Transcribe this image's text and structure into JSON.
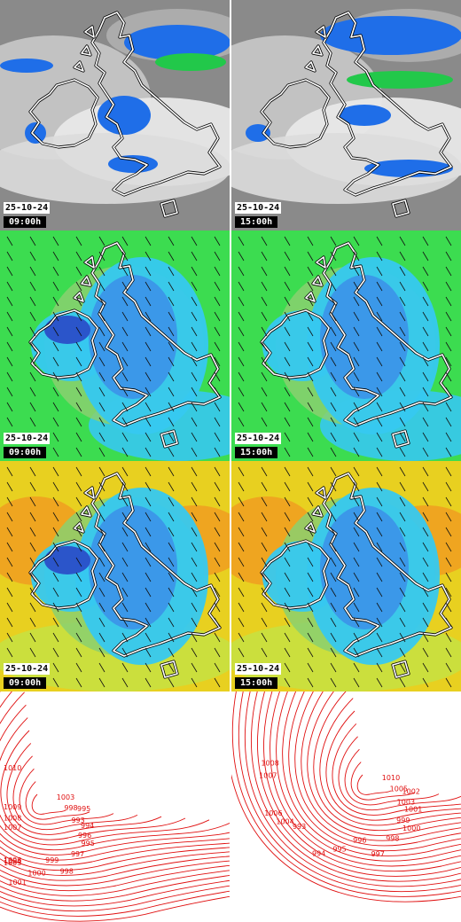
{
  "panels": [
    {
      "row": 0,
      "col": 0,
      "kind": "precipitation",
      "date": "25-10-24",
      "time": "09:00h"
    },
    {
      "row": 0,
      "col": 1,
      "kind": "precipitation",
      "date": "25-10-24",
      "time": "15:00h"
    },
    {
      "row": 1,
      "col": 0,
      "kind": "wind-field",
      "date": "25-10-24",
      "time": "09:00h"
    },
    {
      "row": 1,
      "col": 1,
      "kind": "wind-field",
      "date": "25-10-24",
      "time": "15:00h"
    },
    {
      "row": 2,
      "col": 0,
      "kind": "wind-gust",
      "date": "25-10-24",
      "time": "09:00h"
    },
    {
      "row": 2,
      "col": 1,
      "kind": "wind-gust",
      "date": "25-10-24",
      "time": "15:00h"
    },
    {
      "row": 3,
      "col": 0,
      "kind": "pressure-isobars"
    },
    {
      "row": 3,
      "col": 1,
      "kind": "pressure-isobars"
    }
  ],
  "isobar_labels_left": [
    "1003",
    "998",
    "993",
    "995",
    "994",
    "995",
    "996",
    "997",
    "998",
    "999",
    "1000",
    "1001",
    "1004",
    "1005",
    "1006",
    "1007",
    "1008",
    "1009",
    "1010"
  ],
  "isobar_labels_right": [
    "1010",
    "1005",
    "1003",
    "1002",
    "1001",
    "1000",
    "999",
    "998",
    "997",
    "996",
    "995",
    "994",
    "993",
    "1004",
    "1006",
    "1007",
    "1008"
  ],
  "colors": {
    "rain_light": "#1f6ee8",
    "rain_heavy": "#22c84a",
    "cloud": "#c8c8c8",
    "wind_low": "#2a4fc8",
    "wind_mid": "#36c8f0",
    "wind_high": "#3cdc50",
    "gust_high": "#f0a020",
    "isobar": "#e01010"
  }
}
